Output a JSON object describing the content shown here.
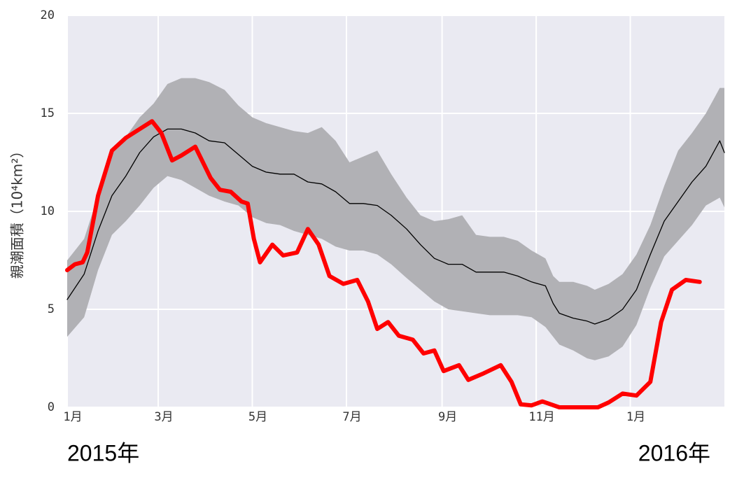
{
  "chart_data": {
    "type": "line",
    "y_label": "親潮面積（10⁴km²）",
    "annotations": [
      "2015年",
      "2016年"
    ],
    "xlim": [
      0,
      426
    ],
    "xticks": [
      {
        "value": 0,
        "label": "1月"
      },
      {
        "value": 59,
        "label": "3月"
      },
      {
        "value": 120,
        "label": "5月"
      },
      {
        "value": 181,
        "label": "7月"
      },
      {
        "value": 243,
        "label": "9月"
      },
      {
        "value": 304,
        "label": "11月"
      },
      {
        "value": 365,
        "label": "1月"
      }
    ],
    "ylim": [
      0,
      20
    ],
    "yticks": [
      0,
      5,
      10,
      15,
      20
    ],
    "grid": true,
    "background": "#eaeaf2",
    "series": [
      {
        "color": "#000000",
        "band_color": "#b1b1b5",
        "x": [
          0,
          11,
          20,
          29,
          38,
          47,
          56,
          65,
          74,
          83,
          92,
          102,
          111,
          120,
          129,
          138,
          147,
          156,
          165,
          174,
          183,
          192,
          201,
          210,
          220,
          229,
          238,
          247,
          256,
          265,
          274,
          283,
          292,
          301,
          310,
          315,
          319,
          328,
          337,
          342,
          351,
          360,
          369,
          378,
          387,
          396,
          405,
          414,
          423,
          426
        ],
        "values": [
          5.5,
          6.8,
          9.0,
          10.8,
          11.8,
          13.0,
          13.8,
          14.2,
          14.2,
          14.0,
          13.6,
          13.5,
          12.9,
          12.3,
          12.0,
          11.9,
          11.9,
          11.5,
          11.4,
          11.0,
          10.4,
          10.4,
          10.3,
          9.8,
          9.1,
          8.3,
          7.6,
          7.3,
          7.3,
          6.9,
          6.9,
          6.9,
          6.7,
          6.4,
          6.2,
          5.3,
          4.8,
          4.55,
          4.4,
          4.25,
          4.5,
          5.0,
          6.0,
          7.8,
          9.5,
          10.5,
          11.5,
          12.3,
          13.6,
          13.0
        ],
        "upper": [
          7.5,
          8.6,
          10.8,
          13.0,
          13.8,
          14.8,
          15.5,
          16.5,
          16.8,
          16.8,
          16.6,
          16.2,
          15.4,
          14.8,
          14.5,
          14.3,
          14.1,
          14.0,
          14.3,
          13.6,
          12.5,
          12.8,
          13.1,
          11.9,
          10.7,
          9.8,
          9.5,
          9.6,
          9.8,
          8.8,
          8.7,
          8.7,
          8.5,
          8.0,
          7.6,
          6.7,
          6.4,
          6.4,
          6.2,
          6.0,
          6.3,
          6.8,
          7.8,
          9.3,
          11.3,
          13.1,
          14.0,
          15.0,
          16.3,
          16.3
        ],
        "lower": [
          3.6,
          4.6,
          7.0,
          8.8,
          9.5,
          10.3,
          11.2,
          11.8,
          11.6,
          11.2,
          10.8,
          10.5,
          10.3,
          9.7,
          9.4,
          9.3,
          9.0,
          8.8,
          8.6,
          8.2,
          8.0,
          8.0,
          7.8,
          7.3,
          6.6,
          6.0,
          5.4,
          5.0,
          4.9,
          4.8,
          4.7,
          4.7,
          4.7,
          4.6,
          4.1,
          3.6,
          3.2,
          2.9,
          2.5,
          2.4,
          2.6,
          3.1,
          4.2,
          6.1,
          7.7,
          8.5,
          9.3,
          10.3,
          10.7,
          10.2
        ]
      },
      {
        "color": "#ff0000",
        "x": [
          0,
          5,
          10,
          13,
          20,
          29,
          38,
          47,
          55,
          61,
          68,
          74,
          83,
          93,
          99,
          106,
          113,
          117,
          121,
          125,
          133,
          140,
          149,
          156,
          163,
          170,
          179,
          188,
          195,
          201,
          208,
          215,
          224,
          231,
          238,
          244,
          254,
          260,
          269,
          281,
          288,
          294,
          301,
          308,
          319,
          344,
          351,
          360,
          369,
          378,
          385,
          392,
          401,
          410
        ],
        "values": [
          7.0,
          7.3,
          7.4,
          7.9,
          10.8,
          13.1,
          13.75,
          14.2,
          14.6,
          14.0,
          12.6,
          12.85,
          13.3,
          11.7,
          11.1,
          11.0,
          10.5,
          10.4,
          8.6,
          7.4,
          8.3,
          7.75,
          7.9,
          9.1,
          8.3,
          6.7,
          6.3,
          6.5,
          5.4,
          4.0,
          4.35,
          3.65,
          3.45,
          2.75,
          2.9,
          1.85,
          2.15,
          1.4,
          1.7,
          2.15,
          1.3,
          0.15,
          0.1,
          0.3,
          0,
          0,
          0.25,
          0.7,
          0.6,
          1.3,
          4.35,
          6.0,
          6.5,
          6.4
        ]
      }
    ]
  }
}
